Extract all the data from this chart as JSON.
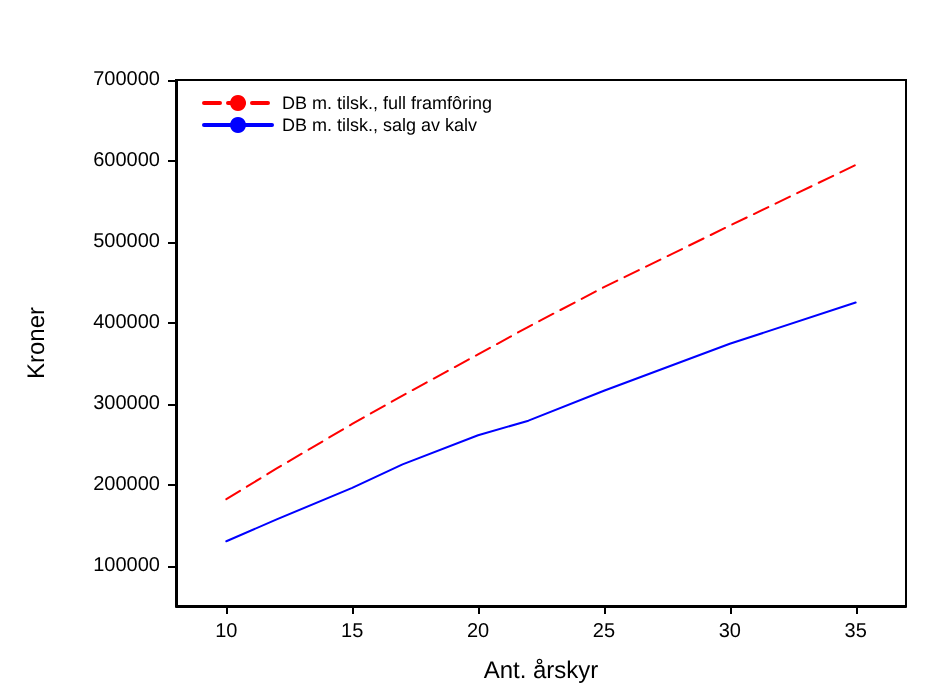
{
  "chart_data": {
    "type": "line",
    "xlabel": "Ant. årskyr",
    "ylabel": "Kroner",
    "x": [
      10,
      12,
      15,
      17,
      20,
      22,
      25,
      30,
      35
    ],
    "series": [
      {
        "name": "DB m. tilsk., full framfôring",
        "color": "#ff0000",
        "line_style": "dashed",
        "values": [
          182000,
          220000,
          275000,
          310000,
          361000,
          395000,
          444000,
          520000,
          595000
        ]
      },
      {
        "name": "DB m. tilsk., salg av kalv",
        "color": "#0000ff",
        "line_style": "solid",
        "values": [
          130000,
          157000,
          196000,
          225000,
          261000,
          279000,
          316000,
          374000,
          425000
        ]
      }
    ],
    "xlim": [
      8,
      37
    ],
    "xticks": [
      10,
      15,
      20,
      25,
      30,
      35
    ],
    "ylim": [
      50000,
      700000
    ],
    "yticks": [
      100000,
      200000,
      300000,
      400000,
      500000,
      600000,
      700000
    ],
    "grid": false,
    "legend": "top left",
    "marker": "none"
  }
}
